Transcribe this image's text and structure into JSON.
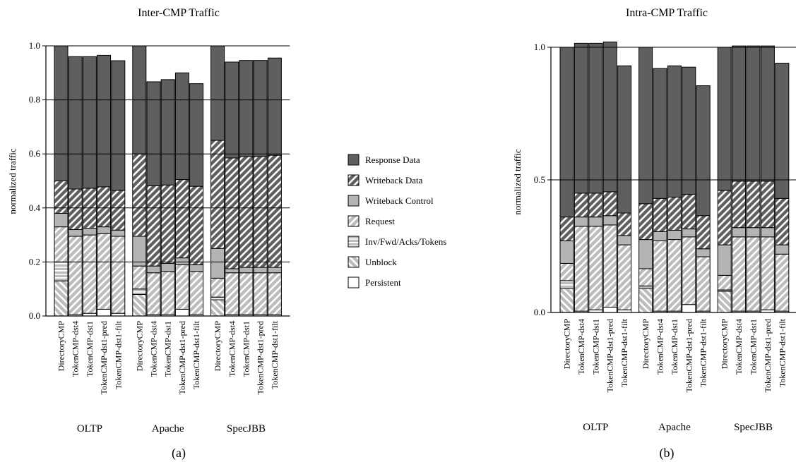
{
  "colors": {
    "response_data": "#5f5f5f",
    "writeback_data": "#5f5f5f",
    "writeback_control": "#b4b4b4",
    "request": "#bcbcbc",
    "inv_fwd_acks_tokens": "#bcbcbc",
    "unblock": "#bcbcbc",
    "persistent": "#ffffff",
    "stripe": "#ffffff",
    "axis": "#000000"
  },
  "legend": {
    "items": [
      {
        "key": "response_data",
        "label": "Response Data"
      },
      {
        "key": "writeback_data",
        "label": "Writeback Data"
      },
      {
        "key": "writeback_control",
        "label": "Writeback Control"
      },
      {
        "key": "request",
        "label": "Request"
      },
      {
        "key": "inv_fwd_acks_tokens",
        "label": "Inv/Fwd/Acks/Tokens"
      },
      {
        "key": "unblock",
        "label": "Unblock"
      },
      {
        "key": "persistent",
        "label": "Persistent"
      }
    ]
  },
  "chart_data": [
    {
      "type": "bar",
      "stacked": true,
      "title": "Inter-CMP Traffic",
      "caption": "(a)",
      "ylabel": "normalized traffic",
      "ylim": [
        0,
        1.0
      ],
      "yticks": [
        {
          "value": 0.0,
          "label": "0.0"
        },
        {
          "value": 0.2,
          "label": "0.2"
        },
        {
          "value": 0.4,
          "label": "0.4"
        },
        {
          "value": 0.6,
          "label": "0.6"
        },
        {
          "value": 0.8,
          "label": "0.8"
        },
        {
          "value": 1.0,
          "label": "1.0"
        }
      ],
      "grid": true,
      "groups": [
        {
          "label": "OLTP",
          "bars": [
            {
              "label": "DirectoryCMP",
              "segments": {
                "persistent": 0.0,
                "unblock": 0.13,
                "inv_fwd_acks_tokens": 0.07,
                "request": 0.13,
                "writeback_control": 0.05,
                "writeback_data": 0.12,
                "response_data": 0.5
              }
            },
            {
              "label": "TokenCMP-dst4",
              "segments": {
                "persistent": 0.005,
                "unblock": 0.0,
                "inv_fwd_acks_tokens": 0.0,
                "request": 0.29,
                "writeback_control": 0.025,
                "writeback_data": 0.15,
                "response_data": 0.49
              }
            },
            {
              "label": "TokenCMP-dst1",
              "segments": {
                "persistent": 0.01,
                "unblock": 0.0,
                "inv_fwd_acks_tokens": 0.0,
                "request": 0.29,
                "writeback_control": 0.025,
                "writeback_data": 0.148,
                "response_data": 0.487
              }
            },
            {
              "label": "TokenCMP-dst1-pred",
              "segments": {
                "persistent": 0.025,
                "unblock": 0.0,
                "inv_fwd_acks_tokens": 0.0,
                "request": 0.28,
                "writeback_control": 0.025,
                "writeback_data": 0.148,
                "response_data": 0.487
              }
            },
            {
              "label": "TokenCMP-dst1-filt",
              "segments": {
                "persistent": 0.01,
                "unblock": 0.0,
                "inv_fwd_acks_tokens": 0.0,
                "request": 0.285,
                "writeback_control": 0.023,
                "writeback_data": 0.147,
                "response_data": 0.48
              }
            }
          ]
        },
        {
          "label": "Apache",
          "bars": [
            {
              "label": "DirectoryCMP",
              "segments": {
                "persistent": 0.0,
                "unblock": 0.08,
                "inv_fwd_acks_tokens": 0.02,
                "request": 0.085,
                "writeback_control": 0.11,
                "writeback_data": 0.305,
                "response_data": 0.4
              }
            },
            {
              "label": "TokenCMP-dst4",
              "segments": {
                "persistent": 0.005,
                "unblock": 0.0,
                "inv_fwd_acks_tokens": 0.0,
                "request": 0.155,
                "writeback_control": 0.025,
                "writeback_data": 0.297,
                "response_data": 0.385
              }
            },
            {
              "label": "TokenCMP-dst1",
              "segments": {
                "persistent": 0.005,
                "unblock": 0.0,
                "inv_fwd_acks_tokens": 0.0,
                "request": 0.16,
                "writeback_control": 0.03,
                "writeback_data": 0.29,
                "response_data": 0.39
              }
            },
            {
              "label": "TokenCMP-dst1-pred",
              "segments": {
                "persistent": 0.025,
                "unblock": 0.0,
                "inv_fwd_acks_tokens": 0.0,
                "request": 0.165,
                "writeback_control": 0.025,
                "writeback_data": 0.29,
                "response_data": 0.395
              }
            },
            {
              "label": "TokenCMP-dst1-filt",
              "segments": {
                "persistent": 0.005,
                "unblock": 0.0,
                "inv_fwd_acks_tokens": 0.0,
                "request": 0.16,
                "writeback_control": 0.025,
                "writeback_data": 0.29,
                "response_data": 0.38
              }
            }
          ]
        },
        {
          "label": "SpecJBB",
          "bars": [
            {
              "label": "DirectoryCMP",
              "segments": {
                "persistent": 0.0,
                "unblock": 0.06,
                "inv_fwd_acks_tokens": 0.01,
                "request": 0.07,
                "writeback_control": 0.11,
                "writeback_data": 0.4,
                "response_data": 0.35
              }
            },
            {
              "label": "TokenCMP-dst4",
              "segments": {
                "persistent": 0.005,
                "unblock": 0.0,
                "inv_fwd_acks_tokens": 0.0,
                "request": 0.155,
                "writeback_control": 0.015,
                "writeback_data": 0.41,
                "response_data": 0.355
              }
            },
            {
              "label": "TokenCMP-dst1",
              "segments": {
                "persistent": 0.005,
                "unblock": 0.0,
                "inv_fwd_acks_tokens": 0.0,
                "request": 0.155,
                "writeback_control": 0.02,
                "writeback_data": 0.41,
                "response_data": 0.356
              }
            },
            {
              "label": "TokenCMP-dst1-pred",
              "segments": {
                "persistent": 0.005,
                "unblock": 0.0,
                "inv_fwd_acks_tokens": 0.0,
                "request": 0.155,
                "writeback_control": 0.02,
                "writeback_data": 0.41,
                "response_data": 0.356
              }
            },
            {
              "label": "TokenCMP-dst1-filt",
              "segments": {
                "persistent": 0.005,
                "unblock": 0.0,
                "inv_fwd_acks_tokens": 0.0,
                "request": 0.155,
                "writeback_control": 0.02,
                "writeback_data": 0.415,
                "response_data": 0.36
              }
            }
          ]
        }
      ]
    },
    {
      "type": "bar",
      "stacked": true,
      "title": "Intra-CMP Traffic",
      "caption": "(b)",
      "ylabel": "normalized traffic",
      "ylim": [
        0,
        1.0
      ],
      "yticks": [
        {
          "value": 0.0,
          "label": "0.0"
        },
        {
          "value": 0.5,
          "label": "0.5"
        },
        {
          "value": 1.0,
          "label": "1.0"
        }
      ],
      "grid": true,
      "groups": [
        {
          "label": "OLTP",
          "bars": [
            {
              "label": "DirectoryCMP",
              "segments": {
                "persistent": 0.0,
                "unblock": 0.09,
                "inv_fwd_acks_tokens": 0.03,
                "request": 0.065,
                "writeback_control": 0.085,
                "writeback_data": 0.09,
                "response_data": 0.64
              }
            },
            {
              "label": "TokenCMP-dst4",
              "segments": {
                "persistent": 0.005,
                "unblock": 0.0,
                "inv_fwd_acks_tokens": 0.0,
                "request": 0.32,
                "writeback_control": 0.035,
                "writeback_data": 0.09,
                "response_data": 0.565
              }
            },
            {
              "label": "TokenCMP-dst1",
              "segments": {
                "persistent": 0.01,
                "unblock": 0.0,
                "inv_fwd_acks_tokens": 0.0,
                "request": 0.315,
                "writeback_control": 0.035,
                "writeback_data": 0.09,
                "response_data": 0.565
              }
            },
            {
              "label": "TokenCMP-dst1-pred",
              "segments": {
                "persistent": 0.02,
                "unblock": 0.0,
                "inv_fwd_acks_tokens": 0.0,
                "request": 0.31,
                "writeback_control": 0.035,
                "writeback_data": 0.09,
                "response_data": 0.565
              }
            },
            {
              "label": "TokenCMP-dst1-filt",
              "segments": {
                "persistent": 0.01,
                "unblock": 0.0,
                "inv_fwd_acks_tokens": 0.0,
                "request": 0.245,
                "writeback_control": 0.035,
                "writeback_data": 0.085,
                "response_data": 0.555
              }
            }
          ]
        },
        {
          "label": "Apache",
          "bars": [
            {
              "label": "DirectoryCMP",
              "segments": {
                "persistent": 0.0,
                "unblock": 0.09,
                "inv_fwd_acks_tokens": 0.01,
                "request": 0.065,
                "writeback_control": 0.11,
                "writeback_data": 0.135,
                "response_data": 0.59
              }
            },
            {
              "label": "TokenCMP-dst4",
              "segments": {
                "persistent": 0.005,
                "unblock": 0.0,
                "inv_fwd_acks_tokens": 0.0,
                "request": 0.265,
                "writeback_control": 0.035,
                "writeback_data": 0.125,
                "response_data": 0.49
              }
            },
            {
              "label": "TokenCMP-dst1",
              "segments": {
                "persistent": 0.005,
                "unblock": 0.0,
                "inv_fwd_acks_tokens": 0.0,
                "request": 0.27,
                "writeback_control": 0.035,
                "writeback_data": 0.125,
                "response_data": 0.495
              }
            },
            {
              "label": "TokenCMP-dst1-pred",
              "segments": {
                "persistent": 0.03,
                "unblock": 0.0,
                "inv_fwd_acks_tokens": 0.0,
                "request": 0.255,
                "writeback_control": 0.03,
                "writeback_data": 0.13,
                "response_data": 0.48
              }
            },
            {
              "label": "TokenCMP-dst1-filt",
              "segments": {
                "persistent": 0.005,
                "unblock": 0.0,
                "inv_fwd_acks_tokens": 0.0,
                "request": 0.205,
                "writeback_control": 0.03,
                "writeback_data": 0.125,
                "response_data": 0.49
              }
            }
          ]
        },
        {
          "label": "SpecJBB",
          "bars": [
            {
              "label": "DirectoryCMP",
              "segments": {
                "persistent": 0.0,
                "unblock": 0.08,
                "inv_fwd_acks_tokens": 0.005,
                "request": 0.055,
                "writeback_control": 0.115,
                "writeback_data": 0.205,
                "response_data": 0.54
              }
            },
            {
              "label": "TokenCMP-dst4",
              "segments": {
                "persistent": 0.005,
                "unblock": 0.0,
                "inv_fwd_acks_tokens": 0.0,
                "request": 0.28,
                "writeback_control": 0.035,
                "writeback_data": 0.175,
                "response_data": 0.51
              }
            },
            {
              "label": "TokenCMP-dst1",
              "segments": {
                "persistent": 0.005,
                "unblock": 0.0,
                "inv_fwd_acks_tokens": 0.0,
                "request": 0.28,
                "writeback_control": 0.035,
                "writeback_data": 0.175,
                "response_data": 0.51
              }
            },
            {
              "label": "TokenCMP-dst1-pred",
              "segments": {
                "persistent": 0.01,
                "unblock": 0.0,
                "inv_fwd_acks_tokens": 0.0,
                "request": 0.275,
                "writeback_control": 0.035,
                "writeback_data": 0.175,
                "response_data": 0.51
              }
            },
            {
              "label": "TokenCMP-dst1-filt",
              "segments": {
                "persistent": 0.005,
                "unblock": 0.0,
                "inv_fwd_acks_tokens": 0.0,
                "request": 0.215,
                "writeback_control": 0.035,
                "writeback_data": 0.175,
                "response_data": 0.51
              }
            }
          ]
        }
      ]
    }
  ]
}
